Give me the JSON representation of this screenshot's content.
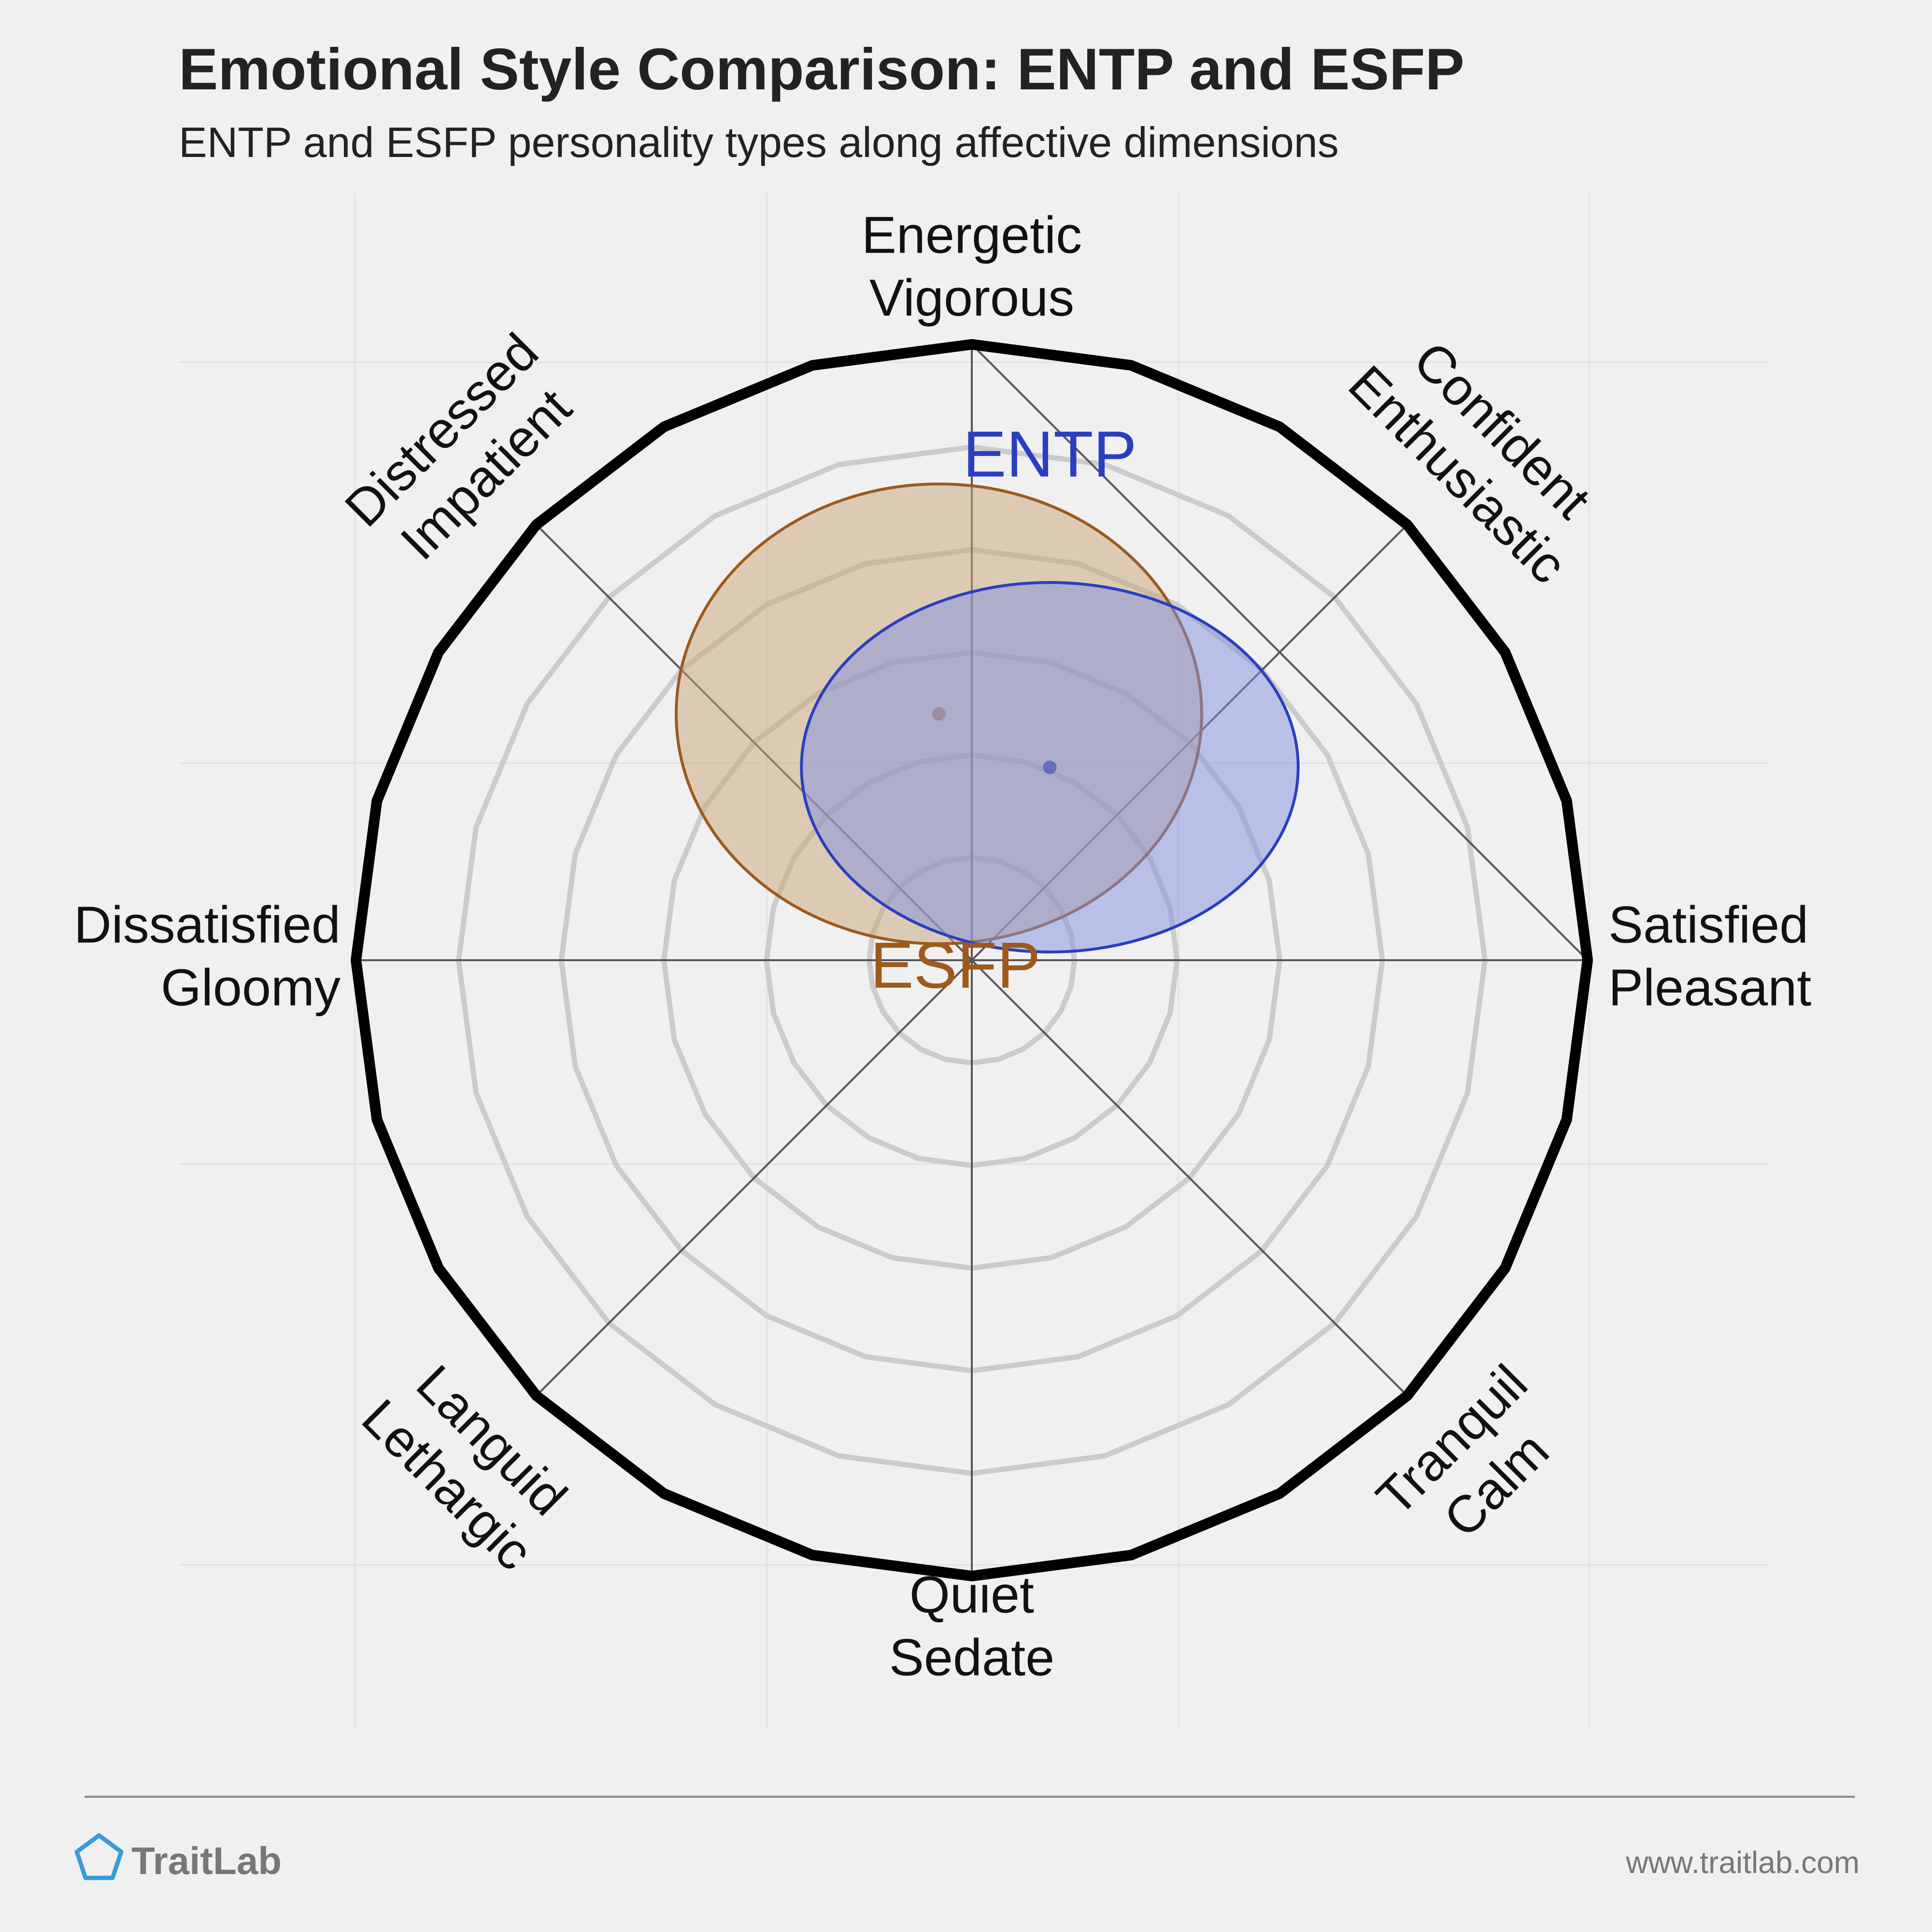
{
  "header": {
    "title": "Emotional Style Comparison: ENTP and ESFP",
    "subtitle": "ENTP and ESFP personality types along affective dimensions"
  },
  "chart_data": {
    "type": "scatter",
    "title": "Emotional Style Comparison: ENTP and ESFP",
    "subtitle": "ENTP and ESFP personality types along affective dimensions",
    "xlabel": "",
    "ylabel": "",
    "xlim": [
      -3,
      3
    ],
    "ylim": [
      -3,
      3
    ],
    "grid": true,
    "rings": [
      0.5,
      1.0,
      1.5,
      2.0,
      2.5
    ],
    "axes": [
      {
        "angle": 90,
        "lines": [
          "Energetic",
          "Vigorous"
        ]
      },
      {
        "angle": 45,
        "lines": [
          "Confident",
          "Enthusiastic"
        ]
      },
      {
        "angle": 0,
        "lines": [
          "Satisfied",
          "Pleasant"
        ]
      },
      {
        "angle": -45,
        "lines": [
          "Tranquil",
          "Calm"
        ]
      },
      {
        "angle": -90,
        "lines": [
          "Quiet",
          "Sedate"
        ]
      },
      {
        "angle": -135,
        "lines": [
          "Languid",
          "Lethargic"
        ]
      },
      {
        "angle": 180,
        "lines": [
          "Dissatisfied",
          "Gloomy"
        ]
      },
      {
        "angle": 135,
        "lines": [
          "Distressed",
          "Impatient"
        ]
      }
    ],
    "series": [
      {
        "name": "ESFP",
        "x": -0.16,
        "y": 1.2,
        "rx": 1.28,
        "ry": 1.12,
        "color": "#9c5a1c",
        "fill": "#c9a47a"
      },
      {
        "name": "ENTP",
        "x": 0.38,
        "y": 0.94,
        "rx": 1.21,
        "ry": 0.9,
        "color": "#2a3fbf",
        "fill": "#8090e0"
      }
    ]
  },
  "footer": {
    "brand": "TraitLab",
    "url": "www.traitlab.com"
  },
  "colors": {
    "background": "#f0f0f0",
    "outer_ring": "#000000",
    "inner_ring": "#cccccc",
    "axis_line": "#555555",
    "brand": "#3a9ad9"
  }
}
